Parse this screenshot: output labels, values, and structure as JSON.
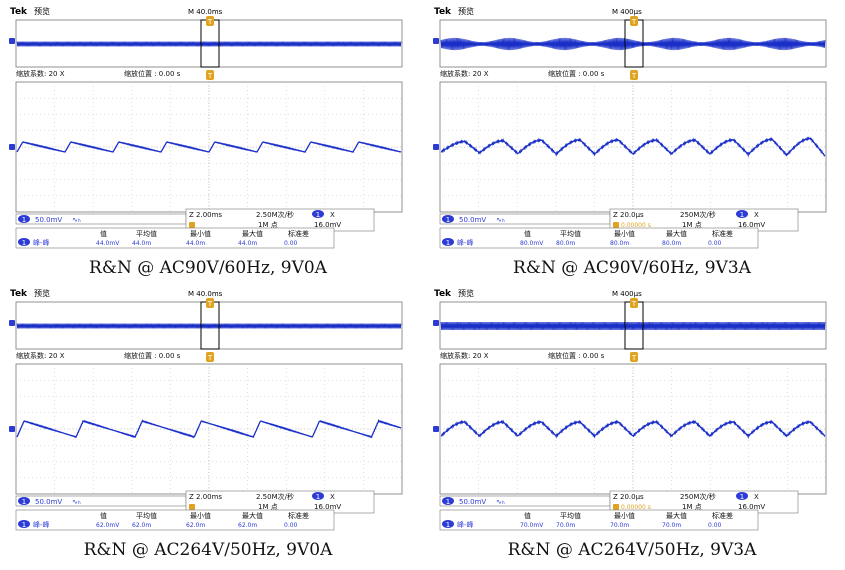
{
  "labels": {
    "brand": "Tek",
    "mode": "预览",
    "zoom_factor_label": "缩放系数: 20 X",
    "zoom_pos_label": "缩放位置 :  0.00 s",
    "ch_label": "1",
    "trig_label": "X",
    "meas_headers": [
      "值",
      "平均值",
      "最小值",
      "最大值",
      "标准差"
    ],
    "meas_name": "峰-峰",
    "coupling": "∿ₕ"
  },
  "colors": {
    "trace": "#1a2fc8",
    "accent": "#2d3bd6",
    "trigger": "#e0a21f",
    "grid": "#c8c8c8"
  },
  "panels": [
    {
      "id": "p1",
      "m_time": "M 40.0ms",
      "volts_div": "50.0mV",
      "zoom_time": "Z 2.00ms",
      "sample": "2.50M次/秒",
      "points": "1M 点",
      "trig_offset": "",
      "trig_level": "16.0mV",
      "meas": [
        "44.0mV",
        "44.0m",
        "44.0m",
        "44.0m",
        "0.00"
      ],
      "caption": "R&N @ AC90V/60Hz, 9V0A",
      "wave": {
        "shape": "saw",
        "cycles": 8,
        "amp": 5,
        "ripple": 0,
        "env_cycles": 0
      }
    },
    {
      "id": "p2",
      "m_time": "M 400µs",
      "volts_div": "50.0mV",
      "zoom_time": "Z 20.0µs",
      "sample": "250M次/秒",
      "points": "1M 点",
      "trig_offset": "0.00000 s",
      "trig_level": "16.0mV",
      "meas": [
        "80.0mV",
        "80.0m",
        "80.0m",
        "80.0m",
        "0.00"
      ],
      "caption": "R&N @ AC90V/60Hz, 9V3A",
      "wave": {
        "shape": "hump",
        "cycles": 10,
        "amp": 9,
        "ripple": 6,
        "env_cycles": 7
      }
    },
    {
      "id": "p3",
      "m_time": "M 40.0ms",
      "volts_div": "50.0mV",
      "zoom_time": "Z 2.00ms",
      "sample": "2.50M次/秒",
      "points": "1M 点",
      "trig_offset": "",
      "trig_level": "16.0mV",
      "meas": [
        "62.0mV",
        "62.0m",
        "62.0m",
        "62.0m",
        "0.00"
      ],
      "caption": "R&N @ AC264V/50Hz, 9V0A",
      "wave": {
        "shape": "saw",
        "cycles": 6.5,
        "amp": 8,
        "ripple": 0,
        "env_cycles": 0
      }
    },
    {
      "id": "p4",
      "m_time": "M 400µs",
      "volts_div": "50.0mV",
      "zoom_time": "Z 20.0µs",
      "sample": "250M次/秒",
      "points": "1M 点",
      "trig_offset": "0.00000 s",
      "trig_level": "16.0mV",
      "meas": [
        "70.0mV",
        "70.0m",
        "70.0m",
        "70.0m",
        "0.00"
      ],
      "caption": "R&N @ AC264V/50Hz, 9V3A",
      "wave": {
        "shape": "hump",
        "cycles": 10,
        "amp": 7,
        "ripple": 2,
        "env_cycles": 0
      }
    }
  ]
}
